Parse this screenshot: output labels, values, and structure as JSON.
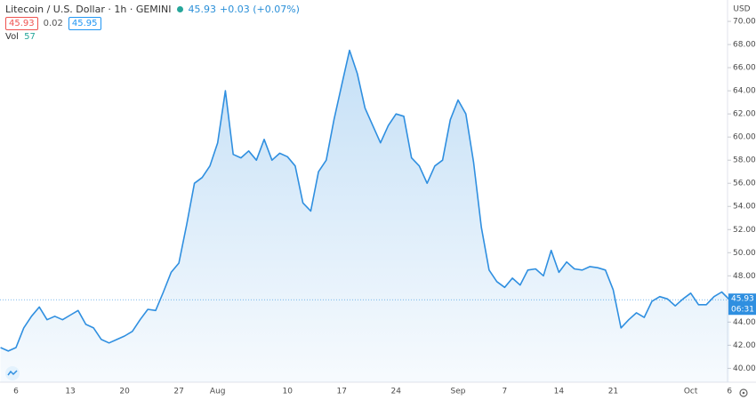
{
  "header": {
    "symbol": "Litecoin / U.S. Dollar · 1h · GEMINI",
    "last": "45.93",
    "change": "+0.03 (+0.07%)",
    "bid": "45.93",
    "spread": "0.02",
    "ask": "45.95",
    "volume_label": "Vol",
    "volume": "57"
  },
  "chart_data": {
    "type": "area",
    "currency": "USD",
    "color": "#2f8fe0",
    "categories": [
      null,
      null,
      "6",
      null,
      null,
      null,
      null,
      null,
      null,
      "13",
      null,
      null,
      null,
      null,
      null,
      null,
      "20",
      null,
      null,
      null,
      null,
      null,
      null,
      "27",
      null,
      null,
      null,
      null,
      "Aug",
      null,
      null,
      null,
      null,
      null,
      null,
      null,
      null,
      "10",
      null,
      null,
      null,
      null,
      null,
      null,
      "17",
      null,
      null,
      null,
      null,
      null,
      null,
      "24",
      null,
      null,
      null,
      null,
      null,
      null,
      null,
      "Sep",
      null,
      null,
      null,
      null,
      null,
      "7",
      null,
      null,
      null,
      null,
      null,
      null,
      "14",
      null,
      null,
      null,
      null,
      null,
      null,
      "21",
      null,
      null,
      null,
      null,
      null,
      null,
      null,
      null,
      null,
      "Oct",
      null,
      null,
      null,
      null,
      "6"
    ],
    "values": [
      41.8,
      41.5,
      41.8,
      43.5,
      44.5,
      45.3,
      44.2,
      44.5,
      44.2,
      44.6,
      45.0,
      43.8,
      43.5,
      42.5,
      42.2,
      42.5,
      42.8,
      43.2,
      44.2,
      45.1,
      45.0,
      46.6,
      48.3,
      49.1,
      52.4,
      56.0,
      56.5,
      57.5,
      59.5,
      64.0,
      58.5,
      58.2,
      58.8,
      58.0,
      59.8,
      58.0,
      58.6,
      58.3,
      57.5,
      54.3,
      53.6,
      57.0,
      58.0,
      61.5,
      64.5,
      67.5,
      65.5,
      62.5,
      61.0,
      59.5,
      61.0,
      62.0,
      61.8,
      58.2,
      57.5,
      56.0,
      57.5,
      58.0,
      61.5,
      63.2,
      62.0,
      57.8,
      52.2,
      48.5,
      47.5,
      47.0,
      47.8,
      47.2,
      48.5,
      48.6,
      48.0,
      50.2,
      48.3,
      49.2,
      48.6,
      48.5,
      48.8,
      48.7,
      48.5,
      46.8,
      43.5,
      44.2,
      44.8,
      44.4,
      45.8,
      46.2,
      46.0,
      45.4,
      46.0,
      46.5,
      45.5,
      45.5,
      46.2,
      46.6,
      45.93
    ],
    "ylim": [
      38.8,
      71.85
    ],
    "yticks": [
      {
        "value": 40,
        "label": "40.00"
      },
      {
        "value": 42,
        "label": "42.00"
      },
      {
        "value": 44,
        "label": "44.00"
      },
      {
        "value": 46,
        "label": "46.00"
      },
      {
        "value": 48,
        "label": "48.00"
      },
      {
        "value": 50,
        "label": "50.00"
      },
      {
        "value": 52,
        "label": "52.00"
      },
      {
        "value": 54,
        "label": "54.00"
      },
      {
        "value": 56,
        "label": "56.00"
      },
      {
        "value": 58,
        "label": "58.00"
      },
      {
        "value": 60,
        "label": "60.00"
      },
      {
        "value": 62,
        "label": "62.00"
      },
      {
        "value": 64,
        "label": "64.00"
      },
      {
        "value": 66,
        "label": "66.00"
      },
      {
        "value": 68,
        "label": "68.00"
      },
      {
        "value": 70,
        "label": "70.00"
      }
    ],
    "price_line": {
      "value": 45.93,
      "label": "45.93"
    },
    "countdown": "06:31"
  }
}
